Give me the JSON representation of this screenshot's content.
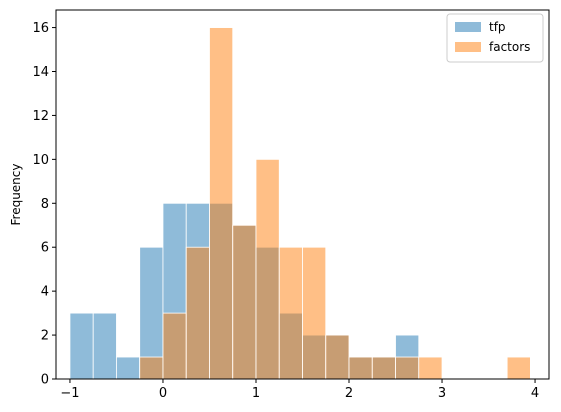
{
  "chart_data": {
    "type": "bar",
    "subtype": "overlaid-histogram",
    "title": "",
    "xlabel": "",
    "ylabel": "Frequency",
    "xlim": [
      -1.15,
      4.15
    ],
    "ylim": [
      0,
      16.8
    ],
    "xticks": [
      -1,
      0,
      1,
      2,
      3,
      4
    ],
    "yticks": [
      0,
      2,
      4,
      6,
      8,
      10,
      12,
      14,
      16
    ],
    "grid": false,
    "legend": {
      "placement": "top-right"
    },
    "series": [
      {
        "name": "tfp",
        "color": "#1f77b4",
        "opacity": 0.5,
        "bins": [
          {
            "x0": -1.0,
            "x1": -0.75,
            "count": 3
          },
          {
            "x0": -0.75,
            "x1": -0.5,
            "count": 3
          },
          {
            "x0": -0.5,
            "x1": -0.25,
            "count": 1
          },
          {
            "x0": -0.25,
            "x1": 0.0,
            "count": 6
          },
          {
            "x0": 0.0,
            "x1": 0.25,
            "count": 8
          },
          {
            "x0": 0.25,
            "x1": 0.5,
            "count": 8
          },
          {
            "x0": 0.5,
            "x1": 0.75,
            "count": 8
          },
          {
            "x0": 0.75,
            "x1": 1.0,
            "count": 7
          },
          {
            "x0": 1.0,
            "x1": 1.25,
            "count": 6
          },
          {
            "x0": 1.25,
            "x1": 1.5,
            "count": 3
          },
          {
            "x0": 1.5,
            "x1": 1.75,
            "count": 2
          },
          {
            "x0": 1.75,
            "x1": 2.0,
            "count": 2
          },
          {
            "x0": 2.0,
            "x1": 2.25,
            "count": 1
          },
          {
            "x0": 2.25,
            "x1": 2.5,
            "count": 1
          },
          {
            "x0": 2.5,
            "x1": 2.75,
            "count": 2
          }
        ]
      },
      {
        "name": "factors",
        "color": "#ff7f0e",
        "opacity": 0.5,
        "bins": [
          {
            "x0": -0.25,
            "x1": 0.0,
            "count": 1
          },
          {
            "x0": 0.0,
            "x1": 0.25,
            "count": 3
          },
          {
            "x0": 0.25,
            "x1": 0.5,
            "count": 6
          },
          {
            "x0": 0.5,
            "x1": 0.75,
            "count": 16
          },
          {
            "x0": 0.75,
            "x1": 1.0,
            "count": 7
          },
          {
            "x0": 1.0,
            "x1": 1.25,
            "count": 10
          },
          {
            "x0": 1.25,
            "x1": 1.5,
            "count": 6
          },
          {
            "x0": 1.5,
            "x1": 1.75,
            "count": 6
          },
          {
            "x0": 1.75,
            "x1": 2.0,
            "count": 2
          },
          {
            "x0": 2.0,
            "x1": 2.25,
            "count": 1
          },
          {
            "x0": 2.25,
            "x1": 2.5,
            "count": 1
          },
          {
            "x0": 2.5,
            "x1": 2.75,
            "count": 1
          },
          {
            "x0": 2.75,
            "x1": 3.0,
            "count": 1
          },
          {
            "x0": 3.7,
            "x1": 3.95,
            "count": 1
          }
        ]
      }
    ]
  }
}
